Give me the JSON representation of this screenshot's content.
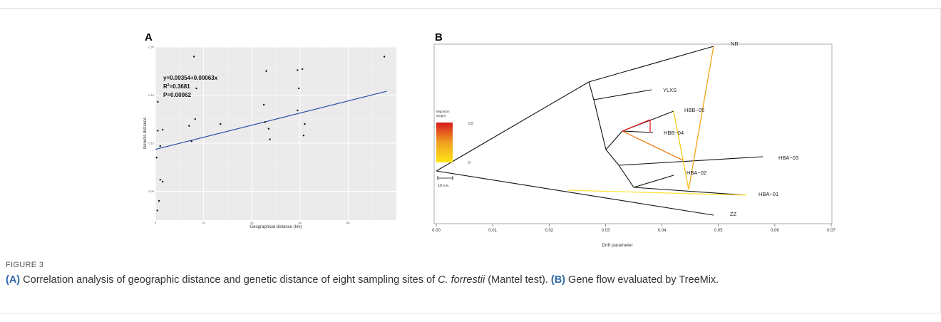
{
  "figure": {
    "label": "FIGURE 3",
    "caption": {
      "part_a_tag": "(A)",
      "part_a_text": " Correlation analysis of geographic distance and genetic distance of eight sampling sites of ",
      "species": "C. forrestii",
      "part_a_tail": " (Mantel test). ",
      "part_b_tag": "(B)",
      "part_b_text": " Gene flow evaluated by TreeMix."
    }
  },
  "chart_data": [
    {
      "panel": "A",
      "type": "scatter",
      "xlabel": "Geographical distance (km)",
      "ylabel": "Genetic distance",
      "xlim": [
        0,
        100
      ],
      "ylim": [
        0.02,
        0.2
      ],
      "x_ticks": [
        "0",
        "20",
        "40",
        "60",
        "80"
      ],
      "y_ticks": [
        "0.05",
        "0.10",
        "0.15",
        "0.20"
      ],
      "grid": true,
      "background": "#ebebeb",
      "annotation": {
        "equation": "y=0.09354+0.00063x",
        "r2_prefix": "R",
        "r2_sup": "2",
        "r2_value": "=0.3681",
        "p": "P=0.00062"
      },
      "fit": {
        "intercept": 0.09354,
        "slope": 0.00063,
        "x_range": [
          0,
          96
        ],
        "color": "#2b4fa8"
      },
      "points": [
        {
          "x": 1,
          "y": 0.143
        },
        {
          "x": 1,
          "y": 0.113
        },
        {
          "x": 0.5,
          "y": 0.085
        },
        {
          "x": 2,
          "y": 0.097
        },
        {
          "x": 2,
          "y": 0.062
        },
        {
          "x": 3,
          "y": 0.06
        },
        {
          "x": 3,
          "y": 0.114
        },
        {
          "x": 1.5,
          "y": 0.04
        },
        {
          "x": 0.8,
          "y": 0.03
        },
        {
          "x": 14,
          "y": 0.118
        },
        {
          "x": 15,
          "y": 0.102
        },
        {
          "x": 16,
          "y": 0.19
        },
        {
          "x": 16.5,
          "y": 0.125
        },
        {
          "x": 17,
          "y": 0.157
        },
        {
          "x": 27,
          "y": 0.12
        },
        {
          "x": 45,
          "y": 0.14
        },
        {
          "x": 45.5,
          "y": 0.122
        },
        {
          "x": 46,
          "y": 0.175
        },
        {
          "x": 47,
          "y": 0.115
        },
        {
          "x": 47.5,
          "y": 0.104
        },
        {
          "x": 59,
          "y": 0.176
        },
        {
          "x": 59,
          "y": 0.134
        },
        {
          "x": 59.5,
          "y": 0.157
        },
        {
          "x": 61,
          "y": 0.177
        },
        {
          "x": 61.5,
          "y": 0.108
        },
        {
          "x": 62,
          "y": 0.12
        },
        {
          "x": 95,
          "y": 0.19
        }
      ]
    },
    {
      "panel": "B",
      "type": "tree",
      "xlabel": "Drift parameter",
      "xlim": [
        0,
        0.07
      ],
      "x_ticks": [
        "0.00",
        "0.01",
        "0.02",
        "0.03",
        "0.04",
        "0.05",
        "0.06",
        "0.07"
      ],
      "scale_bar_label": "10 s.e.",
      "legend": {
        "title_line1": "Migration",
        "title_line2": "weight",
        "max_label": "0.5",
        "min_label": "0",
        "colors": [
          "#d7191c",
          "#f0a020",
          "#ffe619"
        ]
      },
      "tips": [
        "NR",
        "YLXS",
        "HBB−05",
        "HBB−04",
        "HBA−03",
        "HBA−02",
        "HBA−01",
        "ZZ"
      ],
      "branch_color": "#111111",
      "migration_edges": [
        {
          "from": "NR",
          "to": "HBA−02 ancestor",
          "color": "#f2a518"
        },
        {
          "from": "HBB−05",
          "to": "HBA−01 ancestor",
          "color": "#f7c81a"
        },
        {
          "from": "HBA−01",
          "to": "root",
          "color": "#fde23a"
        },
        {
          "from": "HBA−03",
          "to": "HBB−04",
          "color": "#f08020"
        },
        {
          "from": "HBB−04",
          "to": "HBB−05 ancestor",
          "color": "#e31a1c"
        }
      ]
    }
  ]
}
